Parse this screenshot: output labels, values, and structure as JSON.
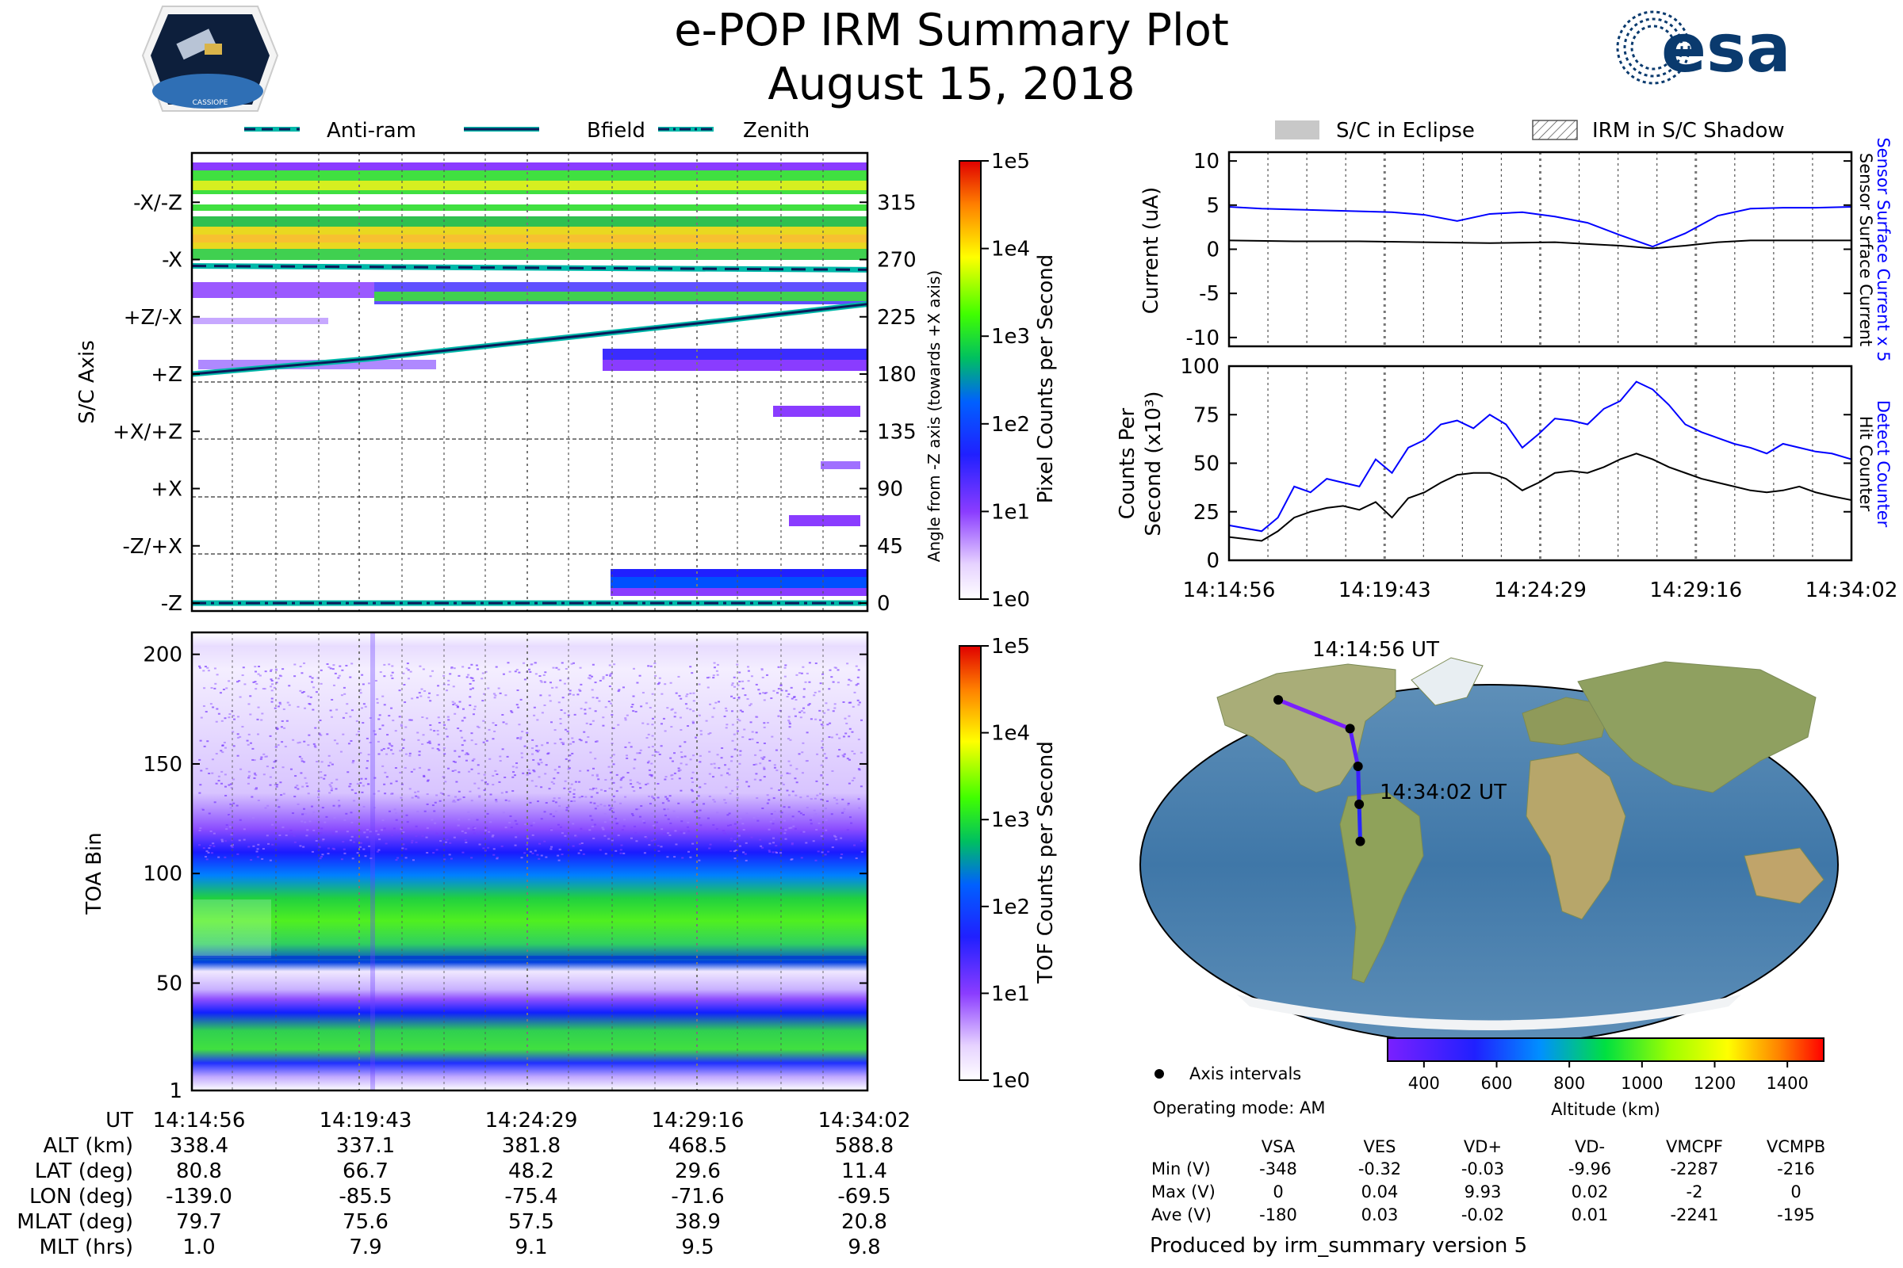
{
  "header": {
    "title": "e-POP IRM Summary Plot",
    "date": "August 15, 2018",
    "mission_logo_text": "CASSIOPE",
    "agency_logo_text": "esa"
  },
  "colors": {
    "accent_blue": "#0000ff",
    "teal": "#00b8a9",
    "navy": "#0b1a5a",
    "agency_blue": "#0a3a6e"
  },
  "legend_top": {
    "items": [
      {
        "label": "Anti-ram",
        "style": "dashed"
      },
      {
        "label": "Bfield",
        "style": "solid"
      },
      {
        "label": "Zenith",
        "style": "dashdot"
      }
    ]
  },
  "legend_right": {
    "items": [
      {
        "label": "S/C in Eclipse",
        "style": "gray-box"
      },
      {
        "label": "IRM in S/C Shadow",
        "style": "hatched-box"
      }
    ]
  },
  "time_ticks": [
    "14:14:56",
    "14:19:43",
    "14:24:29",
    "14:29:16",
    "14:34:02"
  ],
  "chart_data": [
    {
      "id": "sc_axis",
      "type": "heatmap",
      "ylabel": "S/C Axis",
      "ylabel_right": "Angle from -Z axis (towards +X axis)",
      "y_categories": [
        "-X/-Z",
        "-X",
        "+Z/-X",
        "+Z",
        "+X/+Z",
        "+X",
        "-Z/+X",
        "-Z"
      ],
      "y_right_ticks": [
        315,
        270,
        225,
        180,
        135,
        90,
        45,
        0
      ],
      "ylim": [
        0,
        360
      ],
      "xlim_minutes": [
        0,
        19.1
      ],
      "bfield_angle_deg": [
        {
          "t": 0,
          "v": 180
        },
        {
          "t": 5,
          "v": 192
        },
        {
          "t": 10,
          "v": 207
        },
        {
          "t": 15,
          "v": 222
        },
        {
          "t": 19.1,
          "v": 235
        }
      ],
      "antiram_angle_deg": [
        {
          "t": 0,
          "v": 265
        },
        {
          "t": 19.1,
          "v": 262
        }
      ],
      "zenith_angle_deg": [
        {
          "t": 0,
          "v": 0
        },
        {
          "t": 19.1,
          "v": 0
        }
      ],
      "colorbar": {
        "label": "Pixel Counts per Second",
        "ticks": [
          "1e0",
          "1e1",
          "1e2",
          "1e3",
          "1e4",
          "1e5"
        ]
      }
    },
    {
      "id": "toa",
      "type": "heatmap",
      "ylabel": "TOA Bin",
      "y_ticks": [
        1,
        50,
        100,
        150,
        200
      ],
      "ylim": [
        1,
        210
      ],
      "xlim_minutes": [
        0,
        19.1
      ],
      "colorbar": {
        "label": "TOF Counts per Second",
        "ticks": [
          "1e0",
          "1e1",
          "1e2",
          "1e3",
          "1e4",
          "1e5"
        ]
      }
    },
    {
      "id": "current",
      "type": "line",
      "ylabel": "Current (uA)",
      "y_ticks": [
        10,
        5,
        0,
        -5,
        -10
      ],
      "ylim": [
        -11,
        11
      ],
      "xlim_minutes": [
        0,
        19.1
      ],
      "right_labels": [
        {
          "text": "Sensor Surface Current x 5",
          "color": "#0000ff"
        },
        {
          "text": "Sensor Surface Current",
          "color": "#000000"
        }
      ],
      "series": [
        {
          "name": "Sensor Surface Current x 5",
          "color": "#0000ff",
          "x": [
            0,
            1,
            2,
            3,
            4,
            5,
            6,
            7,
            8,
            9,
            10,
            11,
            12,
            13,
            14,
            15,
            16,
            17,
            18,
            19.1
          ],
          "values": [
            4.8,
            4.6,
            4.5,
            4.4,
            4.3,
            4.2,
            3.9,
            3.2,
            4.0,
            4.2,
            3.7,
            3.0,
            1.6,
            0.3,
            1.8,
            3.8,
            4.6,
            4.7,
            4.7,
            4.8
          ]
        },
        {
          "name": "Sensor Surface Current",
          "color": "#000000",
          "x": [
            0,
            2,
            4,
            6,
            8,
            10,
            11,
            12,
            13,
            14,
            15,
            16,
            17,
            19.1
          ],
          "values": [
            1.0,
            0.9,
            0.9,
            0.8,
            0.7,
            0.8,
            0.6,
            0.4,
            0.1,
            0.4,
            0.8,
            1.0,
            1.0,
            1.0
          ]
        }
      ]
    },
    {
      "id": "counts",
      "type": "line",
      "ylabel": "Counts Per Second (x10³)",
      "y_ticks": [
        0,
        25,
        50,
        75,
        100
      ],
      "ylim": [
        0,
        100
      ],
      "xlim_minutes": [
        0,
        19.1
      ],
      "x_ticks": [
        "14:14:56",
        "14:19:43",
        "14:24:29",
        "14:29:16",
        "14:34:02"
      ],
      "right_labels": [
        {
          "text": "Detect Counter",
          "color": "#0000ff"
        },
        {
          "text": "Hit Counter",
          "color": "#000000"
        }
      ],
      "series": [
        {
          "name": "Detect Counter",
          "color": "#0000ff",
          "x": [
            0,
            1,
            1.5,
            2,
            2.5,
            3,
            3.5,
            4,
            4.5,
            5,
            5.5,
            6,
            6.5,
            7,
            7.5,
            8,
            8.5,
            9,
            9.5,
            10,
            10.5,
            11,
            11.5,
            12,
            12.5,
            13,
            13.5,
            14,
            14.5,
            15,
            15.5,
            16,
            16.5,
            17,
            17.5,
            18,
            18.5,
            19.1
          ],
          "values": [
            18,
            15,
            22,
            38,
            35,
            42,
            40,
            38,
            52,
            45,
            58,
            62,
            70,
            72,
            68,
            75,
            70,
            58,
            65,
            73,
            72,
            70,
            78,
            82,
            92,
            88,
            80,
            70,
            66,
            63,
            60,
            58,
            55,
            60,
            58,
            56,
            55,
            52
          ]
        },
        {
          "name": "Hit Counter",
          "color": "#000000",
          "x": [
            0,
            1,
            1.5,
            2,
            2.5,
            3,
            3.5,
            4,
            4.5,
            5,
            5.5,
            6,
            6.5,
            7,
            7.5,
            8,
            8.5,
            9,
            9.5,
            10,
            10.5,
            11,
            11.5,
            12,
            12.5,
            13,
            13.5,
            14,
            14.5,
            15,
            15.5,
            16,
            16.5,
            17,
            17.5,
            18,
            18.5,
            19.1
          ],
          "values": [
            12,
            10,
            15,
            22,
            25,
            27,
            28,
            26,
            30,
            22,
            32,
            35,
            40,
            44,
            45,
            45,
            42,
            36,
            40,
            45,
            46,
            45,
            48,
            52,
            55,
            52,
            48,
            45,
            42,
            40,
            38,
            36,
            35,
            36,
            38,
            35,
            33,
            31
          ]
        }
      ]
    },
    {
      "id": "orbit_map",
      "type": "scatter",
      "projection": "robinson",
      "track": {
        "lon": [
          -139.0,
          -85.5,
          -75.4,
          -71.6,
          -69.5
        ],
        "lat": [
          80.8,
          66.7,
          48.2,
          29.6,
          11.4
        ],
        "alt_km": [
          338.4,
          337.1,
          381.8,
          468.5,
          588.8
        ]
      },
      "start_label": "14:14:56 UT",
      "end_label": "14:34:02 UT",
      "colorbar": {
        "label": "Altitude (km)",
        "ticks": [
          400,
          600,
          800,
          1000,
          1200,
          1400
        ],
        "range": [
          300,
          1500
        ]
      }
    }
  ],
  "ephemeris_table": {
    "rows": [
      {
        "label": "UT",
        "values": [
          "14:14:56",
          "14:19:43",
          "14:24:29",
          "14:29:16",
          "14:34:02"
        ]
      },
      {
        "label": "ALT (km)",
        "values": [
          "338.4",
          "337.1",
          "381.8",
          "468.5",
          "588.8"
        ]
      },
      {
        "label": "LAT (deg)",
        "values": [
          "80.8",
          "66.7",
          "48.2",
          "29.6",
          "11.4"
        ]
      },
      {
        "label": "LON (deg)",
        "values": [
          "-139.0",
          "-85.5",
          "-75.4",
          "-71.6",
          "-69.5"
        ]
      },
      {
        "label": "MLAT (deg)",
        "values": [
          "79.7",
          "75.6",
          "57.5",
          "38.9",
          "20.8"
        ]
      },
      {
        "label": "MLT (hrs)",
        "values": [
          "1.0",
          "7.9",
          "9.1",
          "9.5",
          "9.8"
        ]
      }
    ]
  },
  "info": {
    "axis_intervals_label": "Axis intervals",
    "operating_mode": "Operating mode: AM",
    "produced_by": "Produced by irm_summary version 5"
  },
  "voltage_table": {
    "columns": [
      "VSA",
      "VES",
      "VD+",
      "VD-",
      "VMCPF",
      "VCMPB"
    ],
    "rows": [
      {
        "label": "Min (V)",
        "values": [
          "-348",
          "-0.32",
          "-0.03",
          "-9.96",
          "-2287",
          "-216"
        ]
      },
      {
        "label": "Max (V)",
        "values": [
          "0",
          "0.04",
          "9.93",
          "0.02",
          "-2",
          "0"
        ]
      },
      {
        "label": "Ave (V)",
        "values": [
          "-180",
          "0.03",
          "-0.02",
          "0.01",
          "-2241",
          "-195"
        ]
      }
    ]
  }
}
